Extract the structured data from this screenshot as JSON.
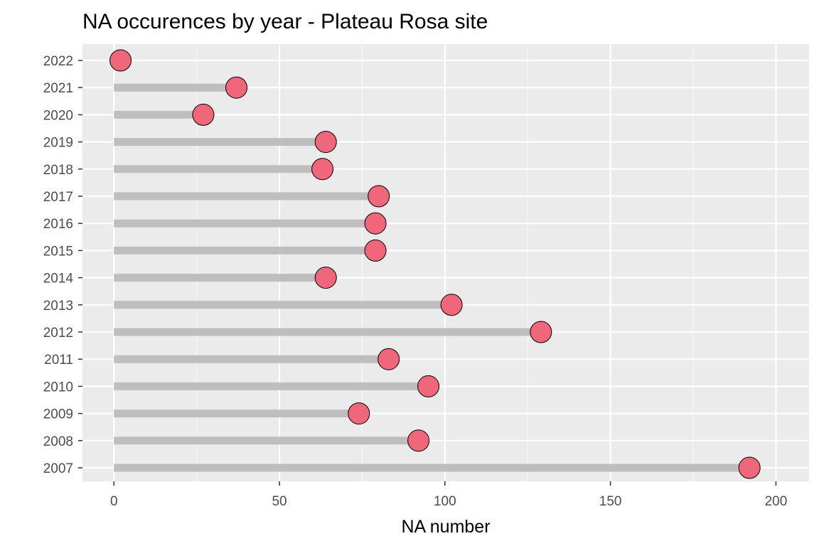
{
  "chart_data": {
    "type": "lollipop",
    "title": "NA occurences by year - Plateau Rosa site",
    "xlabel": "NA number",
    "ylabel": "",
    "xlim": [
      -9.5,
      210
    ],
    "x_ticks": [
      0,
      50,
      100,
      150,
      200
    ],
    "x_tick_labels": [
      "0",
      "50",
      "100",
      "150",
      "200"
    ],
    "categories": [
      "2007",
      "2008",
      "2009",
      "2010",
      "2011",
      "2012",
      "2013",
      "2014",
      "2015",
      "2016",
      "2017",
      "2018",
      "2019",
      "2020",
      "2021",
      "2022"
    ],
    "values": [
      192,
      92,
      74,
      95,
      83,
      129,
      102,
      64,
      79,
      79,
      80,
      63,
      64,
      27,
      37,
      2
    ],
    "grid": true,
    "legend": "none",
    "colors": {
      "panel_background": "#ebebeb",
      "gridline_major": "#ffffff",
      "gridline_minor": "#f5f5f5",
      "stem": "#bebebe",
      "point_fill": "#f0667a",
      "point_stroke": "#000000",
      "tick_label": "#4d4d4d",
      "tick_mark": "#333333"
    }
  }
}
